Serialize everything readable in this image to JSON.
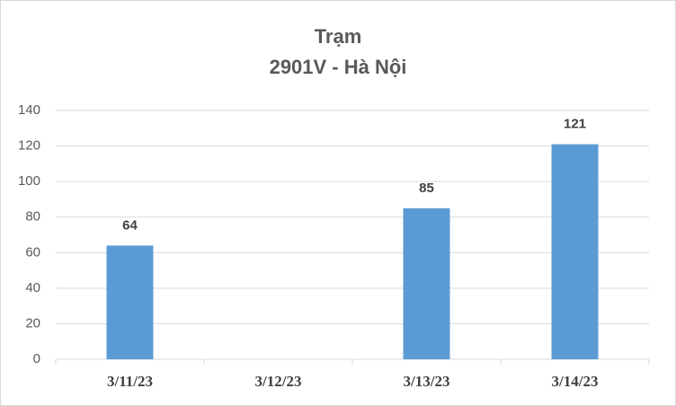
{
  "chart_data": {
    "type": "bar",
    "title": "Trạm",
    "subtitle": "2901V - Hà Nội",
    "categories": [
      "3/11/23",
      "3/12/23",
      "3/13/23",
      "3/14/23"
    ],
    "values": [
      64,
      null,
      85,
      121
    ],
    "color": "#5b9bd5",
    "ylim": [
      0,
      140
    ],
    "yticks": [
      0,
      20,
      40,
      60,
      80,
      100,
      120,
      140
    ],
    "grid": true
  }
}
